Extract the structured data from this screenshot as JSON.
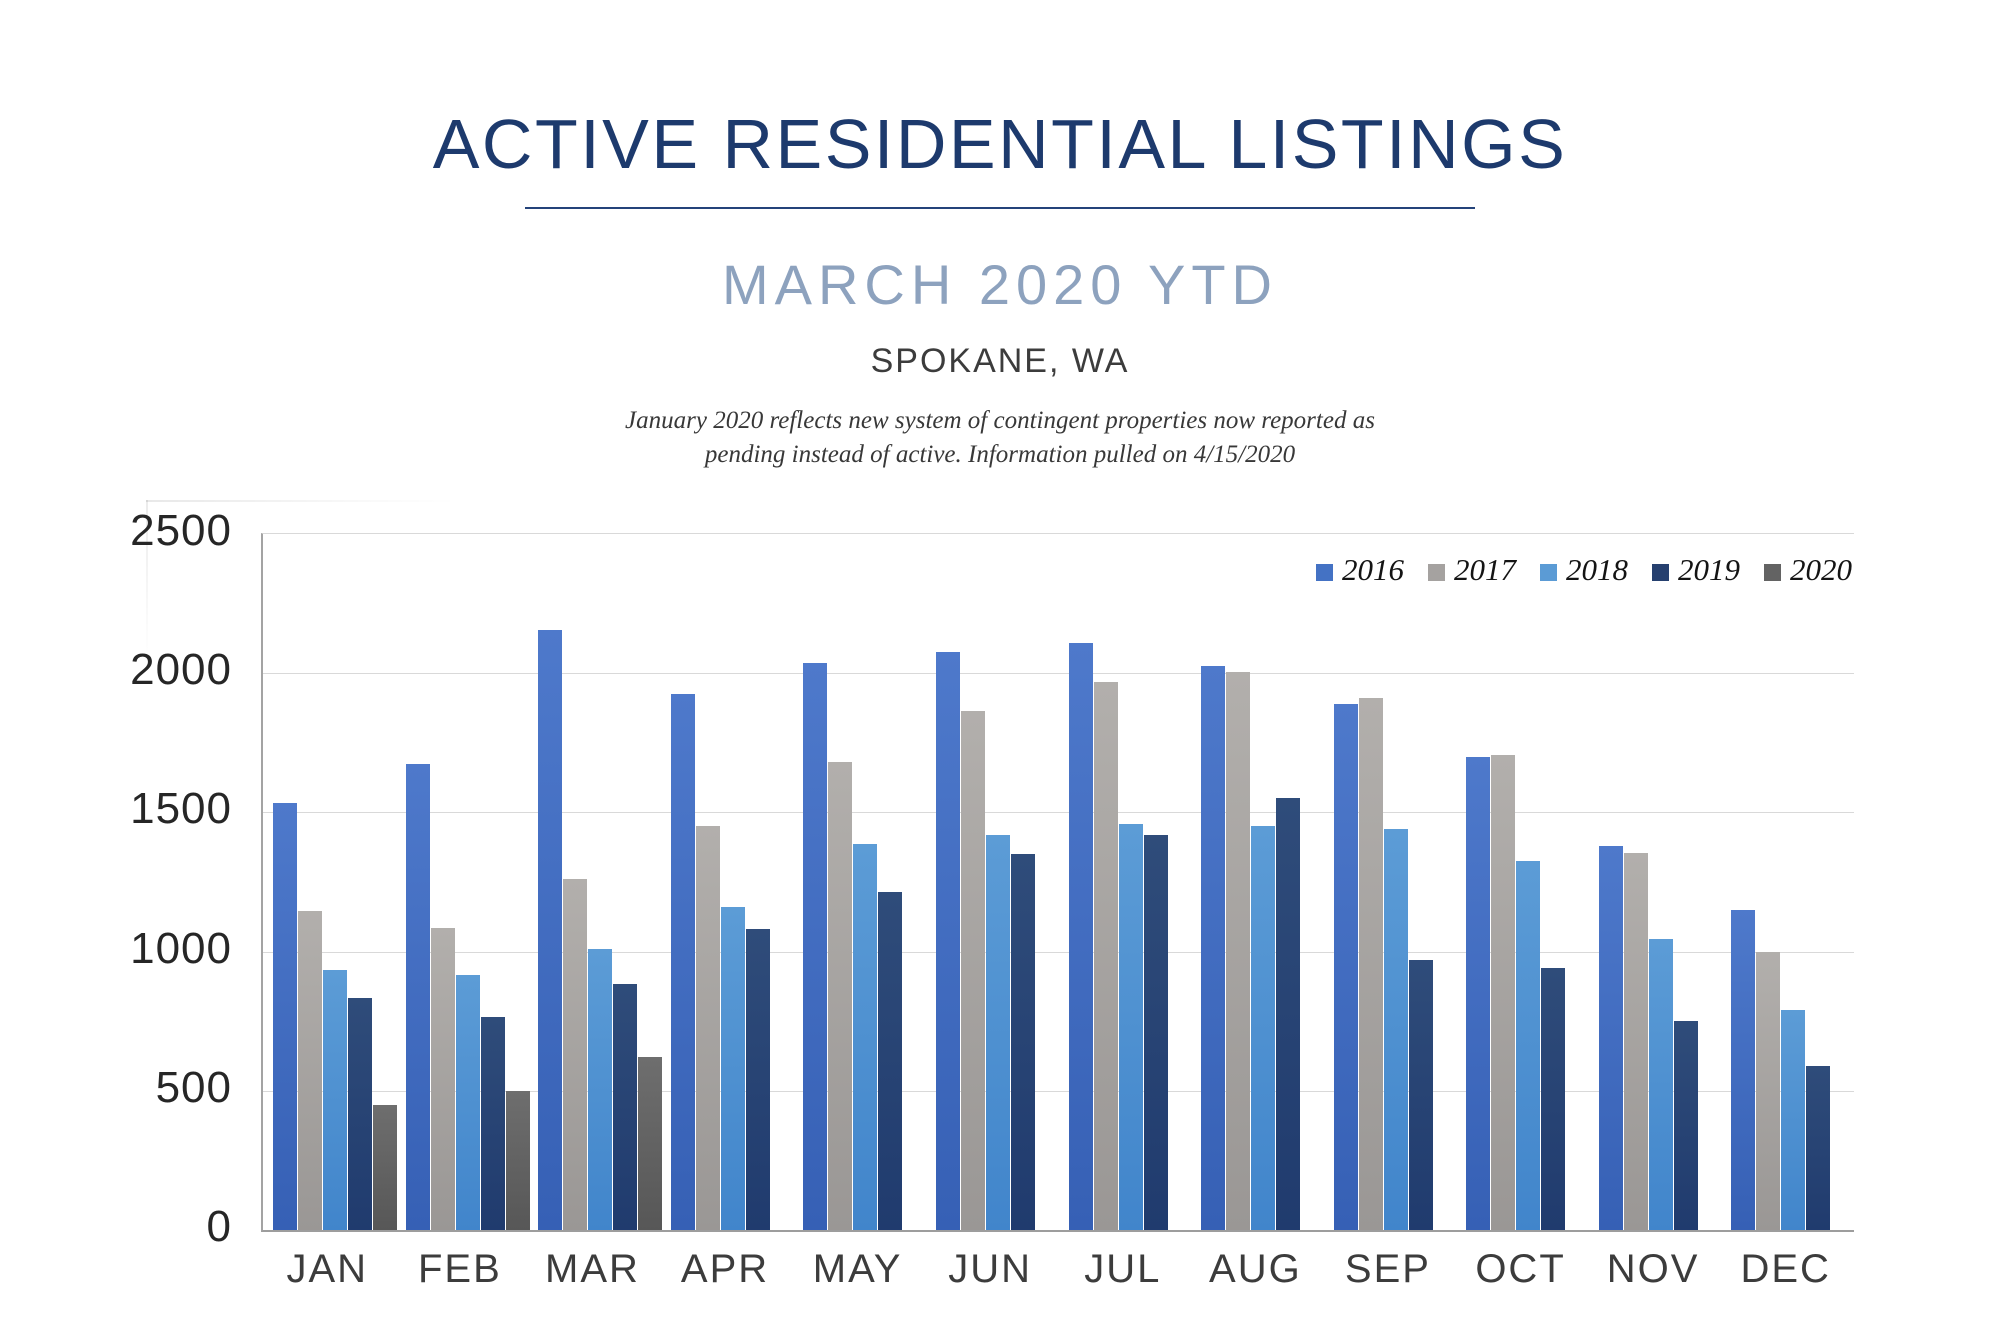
{
  "title": "ACTIVE RESIDENTIAL LISTINGS",
  "subtitle": "MARCH 2020 YTD",
  "location": "SPOKANE, WA",
  "note_line1": "January 2020 reflects new system of contingent properties now reported as",
  "note_line2": "pending instead of active.  Information pulled on 4/15/2020",
  "colors": {
    "title_navy": "#1d3a6d",
    "subtitle_blue": "#8da2be",
    "text_dark": "#3c3c3c",
    "axis_line": "#a3a3a3",
    "gridline": "#d9d9d9"
  },
  "chart_data": {
    "type": "bar",
    "title": "Active Residential Listings by month, Spokane WA",
    "categories": [
      "JAN",
      "FEB",
      "MAR",
      "APR",
      "MAY",
      "JUN",
      "JUL",
      "AUG",
      "SEP",
      "OCT",
      "NOV",
      "DEC"
    ],
    "series": [
      {
        "name": "2016",
        "color": "#4472C4",
        "gradient_top": "#4E79CB",
        "gradient_bottom": "#3660B5",
        "values": [
          1535,
          1675,
          2155,
          1925,
          2035,
          2075,
          2110,
          2025,
          1890,
          1700,
          1380,
          1150
        ]
      },
      {
        "name": "2017",
        "color": "#A5A2A0",
        "gradient_top": "#B2AFAC",
        "gradient_bottom": "#9A9795",
        "values": [
          1145,
          1085,
          1260,
          1450,
          1680,
          1865,
          1970,
          2005,
          1910,
          1705,
          1355,
          1000
        ]
      },
      {
        "name": "2018",
        "color": "#5B9BD5",
        "gradient_top": "#5C9CD6",
        "gradient_bottom": "#4185CB",
        "values": [
          935,
          915,
          1010,
          1160,
          1385,
          1420,
          1460,
          1450,
          1440,
          1325,
          1045,
          790
        ]
      },
      {
        "name": "2019",
        "color": "#26406F",
        "gradient_top": "#2F4C7A",
        "gradient_bottom": "#203B6E",
        "values": [
          835,
          765,
          885,
          1080,
          1215,
          1350,
          1420,
          1550,
          970,
          940,
          750,
          590
        ]
      },
      {
        "name": "2020",
        "color": "#636363",
        "gradient_top": "#6E6E6E",
        "gradient_bottom": "#575757",
        "values": [
          450,
          500,
          620,
          null,
          null,
          null,
          null,
          null,
          null,
          null,
          null,
          null
        ]
      }
    ],
    "xlabel": "",
    "ylabel": "",
    "ylim": [
      0,
      2500
    ],
    "yticks": [
      0,
      500,
      1000,
      1500,
      2000,
      2500
    ],
    "grid": true,
    "legend_position": "top-right"
  }
}
